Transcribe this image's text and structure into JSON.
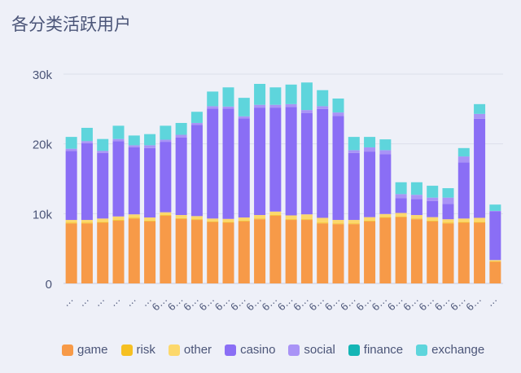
{
  "title": "各分类活跃用户",
  "chart_data": {
    "type": "bar",
    "stacked": true,
    "title": "各分类活跃用户",
    "xlabel": "",
    "ylabel": "",
    "ylim": [
      0,
      30000
    ],
    "yticks": [
      0,
      10000,
      20000,
      30000
    ],
    "ytick_labels": [
      "0",
      "10k",
      "20k",
      "30k"
    ],
    "grid": true,
    "legend_position": "bottom",
    "categories": [
      "…",
      "…",
      "…",
      "…",
      "…",
      "…",
      "6…",
      "6…",
      "6…",
      "6…",
      "6…",
      "6…",
      "6…",
      "6…",
      "6…",
      "6…",
      "6…",
      "6…",
      "6…",
      "6…",
      "6…",
      "6…",
      "6…",
      "6…",
      "6…",
      "6…",
      "6…",
      "…"
    ],
    "series": [
      {
        "name": "game",
        "color": "#f79a48",
        "values": [
          8600,
          8600,
          8700,
          9000,
          9300,
          8900,
          9700,
          9250,
          9100,
          8800,
          8700,
          8900,
          9200,
          9700,
          9100,
          9100,
          8600,
          8500,
          8500,
          8900,
          9400,
          9500,
          9200,
          8900,
          8600,
          8700,
          8700,
          3100
        ]
      },
      {
        "name": "risk",
        "color": "#f6c022",
        "values": [
          100,
          100,
          100,
          100,
          100,
          100,
          100,
          100,
          100,
          100,
          100,
          100,
          100,
          100,
          100,
          100,
          100,
          100,
          100,
          100,
          100,
          100,
          100,
          100,
          100,
          100,
          100,
          50
        ]
      },
      {
        "name": "other",
        "color": "#fcd86c",
        "values": [
          400,
          400,
          500,
          500,
          500,
          450,
          400,
          450,
          450,
          400,
          450,
          450,
          500,
          500,
          550,
          700,
          700,
          500,
          500,
          500,
          450,
          500,
          500,
          500,
          500,
          500,
          600,
          200
        ]
      },
      {
        "name": "casino",
        "color": "#8a6ef5",
        "values": [
          9900,
          11000,
          9400,
          10800,
          9600,
          9950,
          10100,
          11100,
          13050,
          15750,
          15800,
          14200,
          15400,
          14900,
          15550,
          14500,
          15600,
          14900,
          9600,
          9400,
          8550,
          2100,
          2300,
          2300,
          2200,
          8050,
          14200,
          7000
        ]
      },
      {
        "name": "social",
        "color": "#a993f6",
        "values": [
          300,
          300,
          300,
          300,
          300,
          400,
          300,
          400,
          300,
          350,
          300,
          300,
          400,
          400,
          400,
          450,
          400,
          500,
          400,
          600,
          600,
          600,
          600,
          500,
          900,
          850,
          700,
          50
        ]
      },
      {
        "name": "finance",
        "color": "#14b5b5",
        "values": [
          0,
          0,
          0,
          0,
          0,
          0,
          0,
          0,
          0,
          0,
          0,
          0,
          0,
          0,
          0,
          0,
          0,
          0,
          0,
          0,
          0,
          0,
          0,
          0,
          0,
          0,
          0,
          0
        ]
      },
      {
        "name": "exchange",
        "color": "#5ed5dc",
        "values": [
          1700,
          1900,
          1700,
          1900,
          1400,
          1600,
          2000,
          1700,
          1600,
          2100,
          2750,
          2650,
          3000,
          2500,
          2800,
          3950,
          2300,
          2000,
          1900,
          1500,
          1550,
          1700,
          1800,
          1700,
          1350,
          1200,
          1400,
          900
        ]
      }
    ]
  }
}
